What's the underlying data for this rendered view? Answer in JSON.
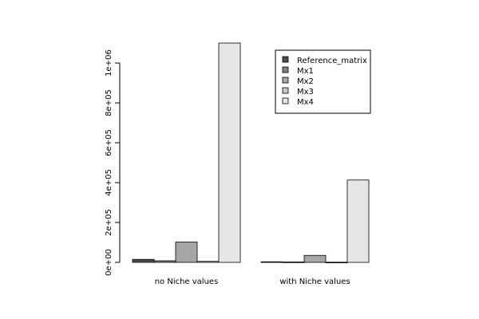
{
  "chart_data": {
    "type": "bar",
    "categories": [
      "no Niche values",
      "with Niche values"
    ],
    "series": [
      {
        "name": "Reference_matrix",
        "color": "#4d4d4d",
        "values": [
          15000,
          3000
        ]
      },
      {
        "name": "Mx1",
        "color": "#7f7f7f",
        "values": [
          8000,
          2000
        ]
      },
      {
        "name": "Mx2",
        "color": "#a6a6a6",
        "values": [
          102000,
          35000
        ]
      },
      {
        "name": "Mx3",
        "color": "#c9c9c9",
        "values": [
          5000,
          1000
        ]
      },
      {
        "name": "Mx4",
        "color": "#e6e6e6",
        "values": [
          1100000,
          413000
        ]
      }
    ],
    "y_ticks": [
      {
        "value": 0,
        "label": "0e+00"
      },
      {
        "value": 200000,
        "label": "2e+05"
      },
      {
        "value": 400000,
        "label": "4e+05"
      },
      {
        "value": 600000,
        "label": "6e+05"
      },
      {
        "value": 800000,
        "label": "8e+05"
      },
      {
        "value": 1000000,
        "label": "1e+06"
      }
    ],
    "ylim": [
      0,
      1100000
    ],
    "legend_position": "top-right",
    "grid": false,
    "title": "",
    "xlabel": "",
    "ylabel": ""
  }
}
